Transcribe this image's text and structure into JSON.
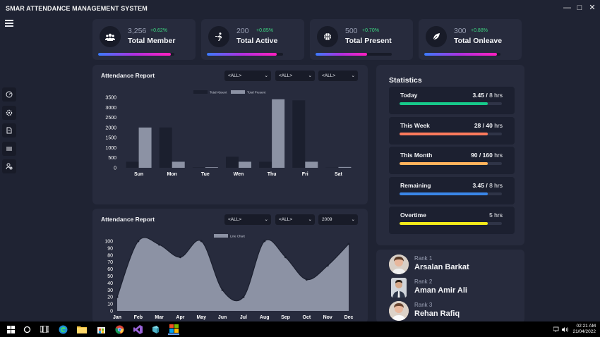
{
  "app": {
    "title": "SMAR ATTENDANCE MANAGEMENT SYSTEM"
  },
  "window_controls": [
    "minimize-icon",
    "maximize-icon",
    "close-icon"
  ],
  "sidebar": {
    "menu_icon": "hamburger-icon",
    "items": [
      "dashboard-icon",
      "settings-icon",
      "document-icon",
      "filter-icon",
      "users-icon"
    ]
  },
  "kpis": [
    {
      "icon": "users-icon",
      "value": "3,256",
      "change": "+0.62%",
      "label": "Total Member",
      "progress": 0.95
    },
    {
      "icon": "runner-icon",
      "value": "200",
      "change": "+0.85%",
      "label": "Total Active",
      "progress": 0.92
    },
    {
      "icon": "basketball-icon",
      "value": "500",
      "change": "+0.70%",
      "label": "Total Present",
      "progress": 0.68
    },
    {
      "icon": "leaf-icon",
      "value": "300",
      "change": "+0.88%",
      "label": "Total Onleave",
      "progress": 0.95
    }
  ],
  "bar_panel": {
    "title": "Attendance Report",
    "filters": [
      "<ALL>",
      "<ALL>",
      "<ALL>"
    ]
  },
  "line_panel": {
    "title": "Attendance Report",
    "filters": [
      "<ALL>",
      "<ALL>",
      "2009"
    ]
  },
  "chart_data": [
    {
      "type": "bar",
      "title": "",
      "categories": [
        "Sun",
        "Mon",
        "Tue",
        "Wen",
        "Thu",
        "Fri",
        "Sat"
      ],
      "series": [
        {
          "name": "Total Absent",
          "values": [
            300,
            2000,
            20,
            550,
            300,
            3350,
            10
          ]
        },
        {
          "name": "Total Present",
          "values": [
            2000,
            300,
            30,
            300,
            3400,
            300,
            40
          ]
        }
      ],
      "yticks": [
        "3500",
        "3000",
        "2500",
        "2000",
        "1500",
        "1000",
        "500",
        "0"
      ],
      "ylim": [
        0,
        3500
      ],
      "colors": {
        "Total Absent": "#1b1f2e",
        "Total Present": "#8c92a4"
      },
      "legend": "top-center",
      "grid": false
    },
    {
      "type": "area",
      "title": "",
      "categories": [
        "Jan",
        "Feb",
        "Mar",
        "Apr",
        "May",
        "Jun",
        "Jul",
        "Aug",
        "Sep",
        "Oct",
        "Nov",
        "Dec"
      ],
      "series": [
        {
          "name": "Line Chart",
          "values": [
            20,
            100,
            95,
            77,
            100,
            30,
            20,
            100,
            77,
            45,
            65,
            96
          ]
        }
      ],
      "yticks": [
        "100",
        "90",
        "80",
        "70",
        "60",
        "50",
        "40",
        "30",
        "20",
        "10",
        "0"
      ],
      "ylim": [
        0,
        100
      ],
      "colors": {
        "Line Chart": "#8c92a4"
      },
      "legend": "top-center",
      "grid": false
    }
  ],
  "statistics": {
    "title": "Statistics",
    "items": [
      {
        "name": "Today",
        "value": "3.45 /",
        "total": "8 hrs",
        "progress": 0.86,
        "color": "#17c98a"
      },
      {
        "name": "This Week",
        "value": "28 / 40",
        "total": "hrs",
        "progress": 0.86,
        "color": "#ff7a5c"
      },
      {
        "name": "This Month",
        "value": "90 / 160",
        "total": "hrs",
        "progress": 0.86,
        "color": "#ffb35c"
      },
      {
        "name": "Remaining",
        "value": "3.45 /",
        "total": "8 hrs",
        "progress": 0.86,
        "color": "#3a86e8"
      },
      {
        "name": "Overtime",
        "value": "",
        "total": "5 hrs",
        "progress": 0.86,
        "color": "#f2ea1a"
      }
    ]
  },
  "ranks": [
    {
      "rank": "Rank 1",
      "name": "Arsalan Barkat"
    },
    {
      "rank": "Rank 2",
      "name": "Aman Amir Ali"
    },
    {
      "rank": "Rank 3",
      "name": "Rehan Rafiq"
    }
  ],
  "taskbar": {
    "items": [
      "windows-icon",
      "search-icon",
      "task-view-icon",
      "edge-icon",
      "file-explorer-icon",
      "store-icon",
      "chrome-icon",
      "visual-studio-icon",
      "app-icon",
      "attendance-app-icon"
    ],
    "time": "02:21 AM",
    "date": "21/04/2022"
  }
}
